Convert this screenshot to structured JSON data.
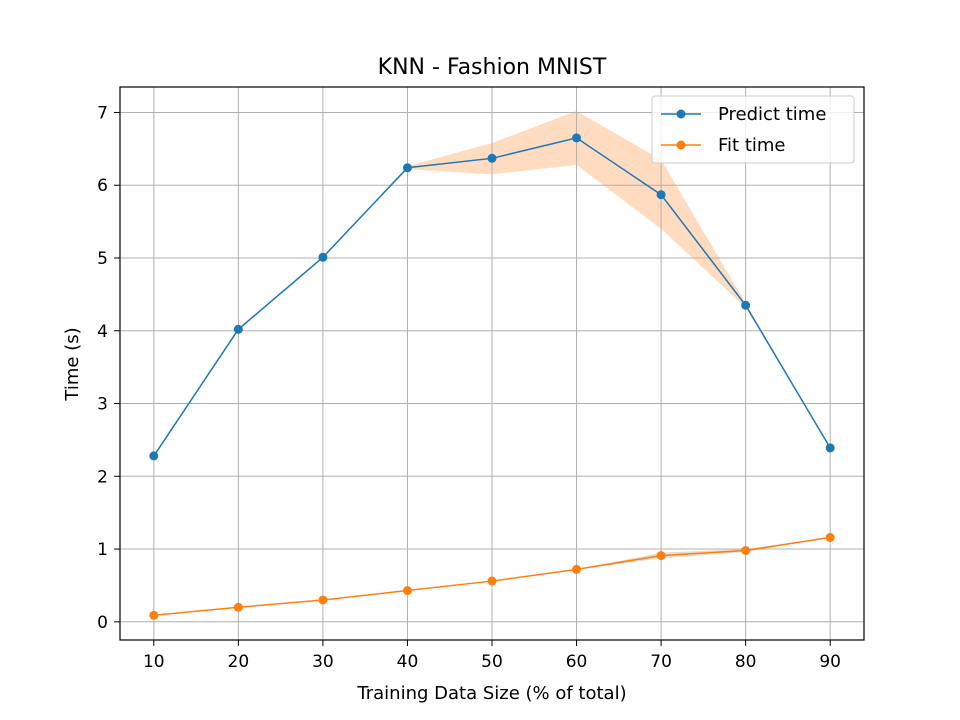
{
  "chart_data": {
    "type": "line",
    "title": "KNN - Fashion MNIST",
    "xlabel": "Training Data Size (% of total)",
    "ylabel": "Time (s)",
    "x": [
      10,
      20,
      30,
      40,
      50,
      60,
      70,
      80,
      90
    ],
    "xlim": [
      6,
      94
    ],
    "ylim": [
      -0.25,
      7.35
    ],
    "xticks": [
      "10",
      "20",
      "30",
      "40",
      "50",
      "60",
      "70",
      "80",
      "90"
    ],
    "yticks": [
      "0",
      "1",
      "2",
      "3",
      "4",
      "5",
      "6",
      "7"
    ],
    "grid": true,
    "legend_position": "top-right",
    "series": [
      {
        "name": "Predict time",
        "color": "#1f77b4",
        "values": [
          2.28,
          4.02,
          5.01,
          6.24,
          6.37,
          6.65,
          5.87,
          4.35,
          2.39
        ],
        "band_lower": [
          2.28,
          4.02,
          5.01,
          6.22,
          6.15,
          6.28,
          5.4,
          4.32,
          2.39
        ],
        "band_upper": [
          2.28,
          4.02,
          5.01,
          6.26,
          6.58,
          7.02,
          6.35,
          4.38,
          2.39
        ],
        "band_color": "#ffdcbf"
      },
      {
        "name": "Fit time",
        "color": "#ff7f0e",
        "values": [
          0.09,
          0.2,
          0.3,
          0.43,
          0.56,
          0.72,
          0.91,
          0.98,
          1.16
        ],
        "band_lower": [
          0.09,
          0.2,
          0.3,
          0.43,
          0.56,
          0.72,
          0.87,
          0.96,
          1.16
        ],
        "band_upper": [
          0.09,
          0.2,
          0.3,
          0.43,
          0.56,
          0.72,
          0.95,
          1.0,
          1.16
        ],
        "band_color": "#e6dcd4"
      }
    ]
  }
}
